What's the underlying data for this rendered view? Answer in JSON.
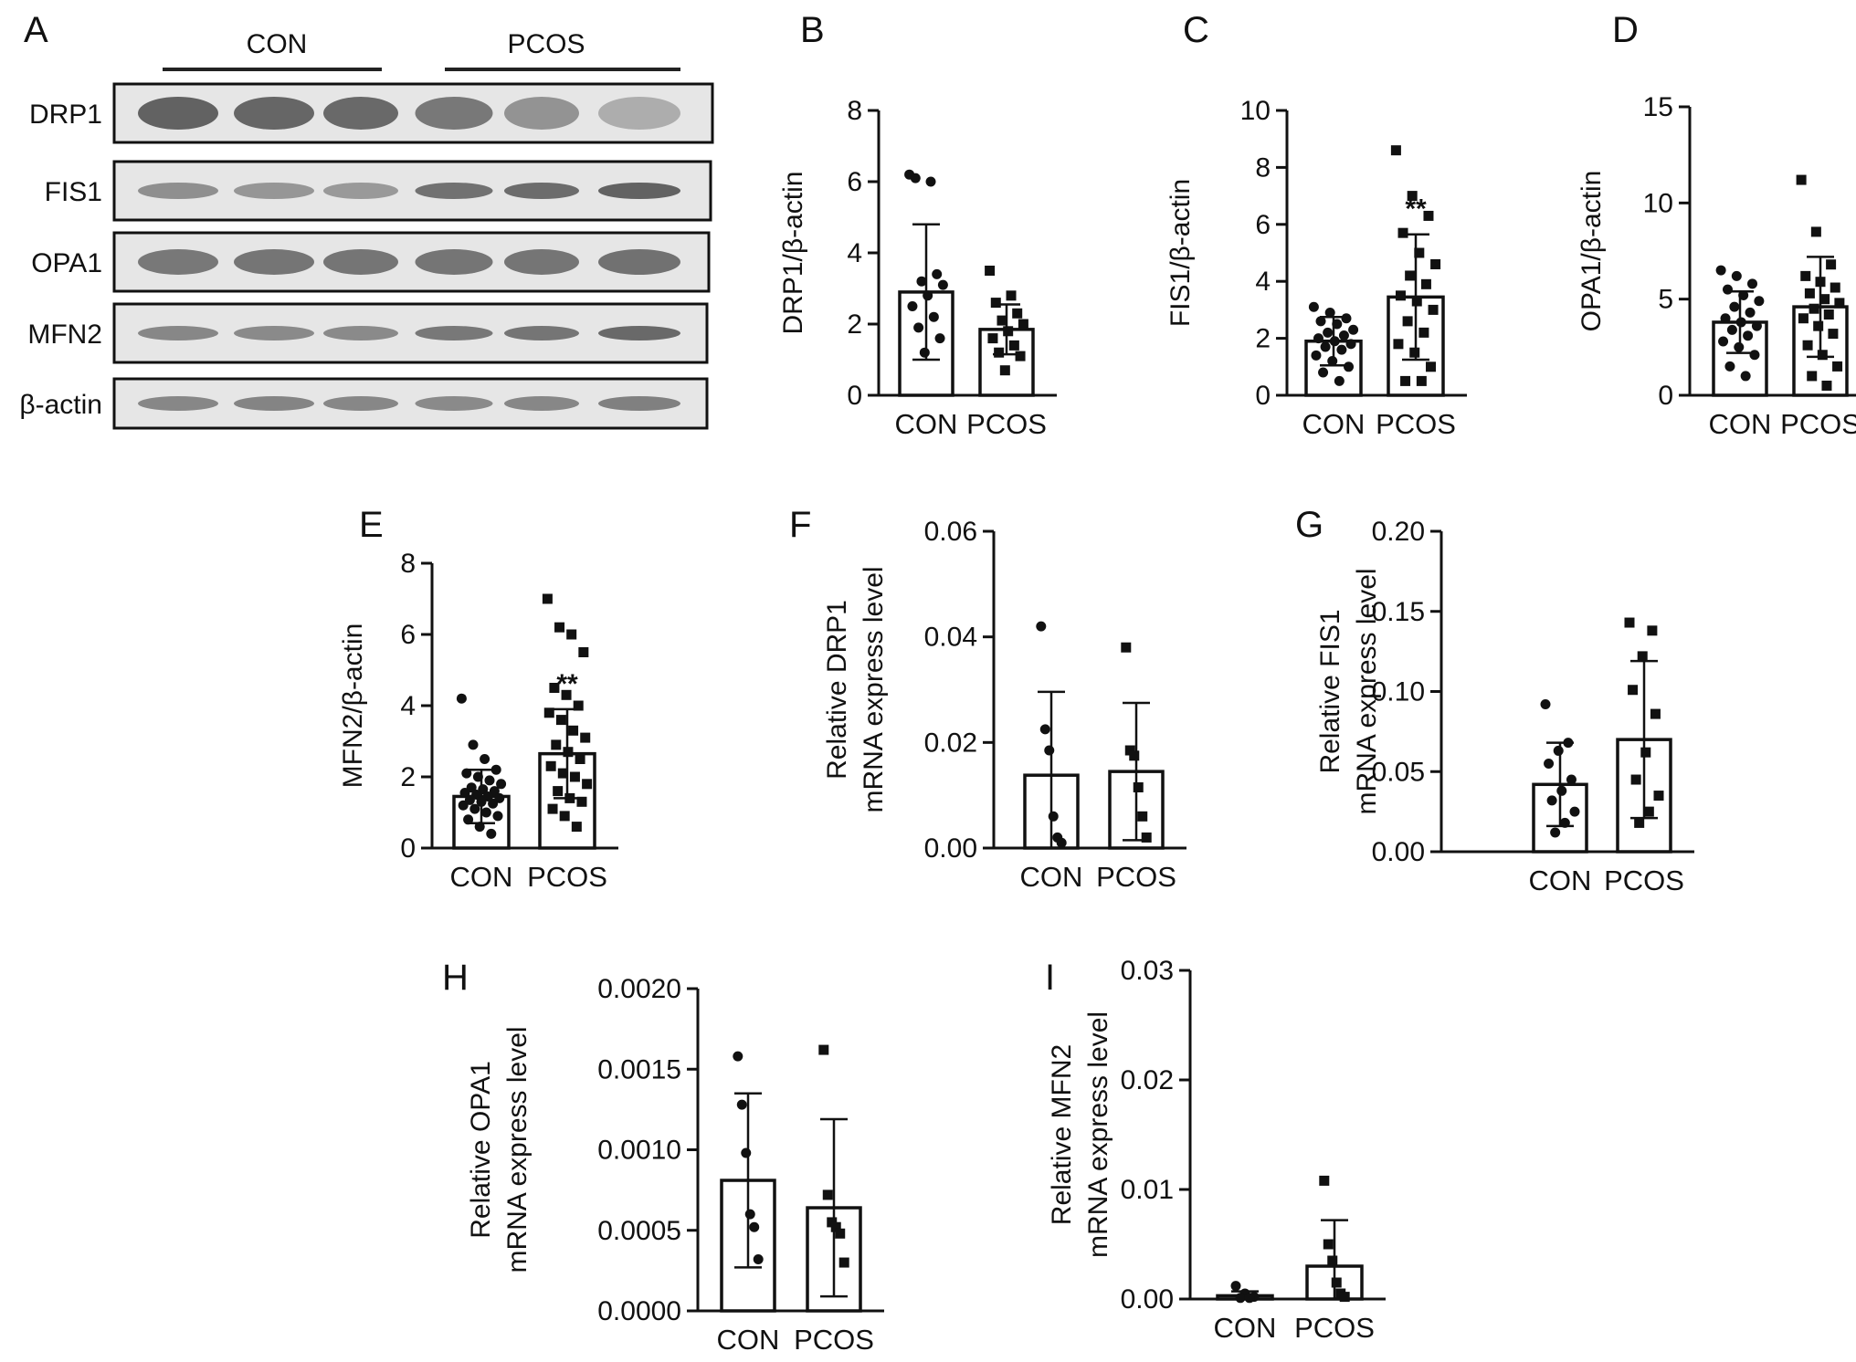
{
  "western_blot": {
    "panel_label": "A",
    "groups": [
      {
        "label": "CON",
        "lanes": 3
      },
      {
        "label": "PCOS",
        "lanes": 3
      }
    ],
    "rows": [
      {
        "label": "DRP1",
        "band_intensity": [
          0.85,
          0.82,
          0.8,
          0.7,
          0.52,
          0.35
        ]
      },
      {
        "label": "FIS1",
        "band_intensity": [
          0.55,
          0.5,
          0.48,
          0.75,
          0.78,
          0.85
        ]
      },
      {
        "label": "OPA1",
        "band_intensity": [
          0.7,
          0.72,
          0.72,
          0.72,
          0.72,
          0.75
        ]
      },
      {
        "label": "MFN2",
        "band_intensity": [
          0.6,
          0.58,
          0.58,
          0.7,
          0.72,
          0.8
        ]
      },
      {
        "label": "β-actin",
        "band_intensity": [
          0.6,
          0.62,
          0.6,
          0.58,
          0.6,
          0.65
        ]
      }
    ]
  },
  "chart_data": [
    {
      "panel": "B",
      "type": "bar",
      "ylabel": [
        "DRP1/β-actin"
      ],
      "ylim": [
        0,
        8
      ],
      "yticks": [
        0,
        2,
        4,
        6,
        8
      ],
      "tick_labels": [
        "0",
        "2",
        "4",
        "6",
        "8"
      ],
      "categories": [
        "CON",
        "PCOS"
      ],
      "values": [
        2.9,
        1.85
      ],
      "sd": [
        1.9,
        0.7
      ],
      "significance": [
        "",
        ""
      ],
      "points": [
        [
          6.2,
          6.0,
          6.1,
          3.4,
          3.2,
          3.1,
          2.8,
          2.5,
          2.2,
          1.9,
          1.6,
          1.2
        ],
        [
          3.5,
          2.8,
          2.6,
          2.3,
          2.1,
          2.0,
          1.8,
          1.6,
          1.4,
          1.2,
          1.1,
          0.7
        ]
      ]
    },
    {
      "panel": "C",
      "type": "bar",
      "ylabel": [
        "FIS1/β-actin"
      ],
      "ylim": [
        0,
        10
      ],
      "yticks": [
        0,
        2,
        4,
        6,
        8,
        10
      ],
      "tick_labels": [
        "0",
        "2",
        "4",
        "6",
        "8",
        "10"
      ],
      "categories": [
        "CON",
        "PCOS"
      ],
      "values": [
        1.9,
        3.45
      ],
      "sd": [
        0.85,
        2.2
      ],
      "significance": [
        "",
        "**"
      ],
      "points": [
        [
          3.1,
          2.9,
          2.7,
          2.6,
          2.5,
          2.3,
          2.2,
          2.1,
          2.0,
          1.9,
          1.8,
          1.7,
          1.6,
          1.4,
          1.2,
          1.0,
          0.8,
          0.5
        ],
        [
          8.6,
          7.0,
          6.3,
          5.7,
          5.0,
          4.6,
          4.2,
          3.9,
          3.5,
          3.3,
          3.0,
          2.6,
          2.2,
          1.8,
          1.5,
          1.0,
          0.5,
          0.5
        ]
      ]
    },
    {
      "panel": "D",
      "type": "bar",
      "ylabel": [
        "OPA1/β-actin"
      ],
      "ylim": [
        0,
        15
      ],
      "yticks": [
        0,
        5,
        10,
        15
      ],
      "tick_labels": [
        "0",
        "5",
        "10",
        "15"
      ],
      "categories": [
        "CON",
        "PCOS"
      ],
      "values": [
        3.8,
        4.6
      ],
      "sd": [
        1.6,
        2.6
      ],
      "significance": [
        "",
        ""
      ],
      "points": [
        [
          6.5,
          6.2,
          5.8,
          5.5,
          5.2,
          4.9,
          4.6,
          4.3,
          4.0,
          3.8,
          3.6,
          3.4,
          3.1,
          2.8,
          2.5,
          2.1,
          1.5,
          1.0
        ],
        [
          11.2,
          8.5,
          6.8,
          6.2,
          5.9,
          5.6,
          5.3,
          5.0,
          4.8,
          4.5,
          4.2,
          4.0,
          3.6,
          3.2,
          2.6,
          2.1,
          1.5,
          1.0,
          0.5
        ]
      ]
    },
    {
      "panel": "E",
      "type": "bar",
      "ylabel": [
        "MFN2/β-actin"
      ],
      "ylim": [
        0,
        8
      ],
      "yticks": [
        0,
        2,
        4,
        6,
        8
      ],
      "tick_labels": [
        "0",
        "2",
        "4",
        "6",
        "8"
      ],
      "categories": [
        "CON",
        "PCOS"
      ],
      "values": [
        1.45,
        2.65
      ],
      "sd": [
        0.75,
        1.25
      ],
      "significance": [
        "",
        "**"
      ],
      "points": [
        [
          4.2,
          2.9,
          2.5,
          2.2,
          2.1,
          2.0,
          1.9,
          1.8,
          1.7,
          1.65,
          1.6,
          1.55,
          1.5,
          1.45,
          1.4,
          1.35,
          1.3,
          1.25,
          1.2,
          1.1,
          1.0,
          0.9,
          0.8,
          0.6,
          0.4
        ],
        [
          7.0,
          6.2,
          6.0,
          5.5,
          4.5,
          4.3,
          4.0,
          3.8,
          3.6,
          3.3,
          3.1,
          2.9,
          2.7,
          2.5,
          2.3,
          2.1,
          2.0,
          1.8,
          1.6,
          1.4,
          1.3,
          1.1,
          0.9,
          0.6
        ]
      ]
    },
    {
      "panel": "F",
      "type": "bar",
      "ylabel": [
        "Relative DRP1",
        "mRNA express level"
      ],
      "ylim": [
        0,
        0.06
      ],
      "yticks": [
        0,
        0.02,
        0.04,
        0.06
      ],
      "tick_labels": [
        "0.00",
        "0.02",
        "0.04",
        "0.06"
      ],
      "categories": [
        "CON",
        "PCOS"
      ],
      "values": [
        0.0138,
        0.0145
      ],
      "sd": [
        0.0158,
        0.013
      ],
      "significance": [
        "",
        ""
      ],
      "points": [
        [
          0.042,
          0.0225,
          0.0185,
          0.006,
          0.002,
          0.001
        ],
        [
          0.038,
          0.0185,
          0.0175,
          0.0115,
          0.006,
          0.002
        ]
      ]
    },
    {
      "panel": "G",
      "type": "bar",
      "ylabel": [
        "Relative FIS1",
        "mRNA express level"
      ],
      "ylim": [
        0,
        0.2
      ],
      "yticks": [
        0,
        0.05,
        0.1,
        0.15,
        0.2
      ],
      "tick_labels": [
        "0.00",
        "0.05",
        "0.10",
        "0.15",
        "0.20"
      ],
      "categories": [
        "CON",
        "PCOS"
      ],
      "values": [
        0.042,
        0.07
      ],
      "sd": [
        0.026,
        0.049
      ],
      "significance": [
        "",
        ""
      ],
      "points": [
        [
          0.092,
          0.068,
          0.063,
          0.055,
          0.045,
          0.038,
          0.032,
          0.025,
          0.018,
          0.012
        ],
        [
          0.143,
          0.138,
          0.122,
          0.101,
          0.086,
          0.062,
          0.045,
          0.035,
          0.025,
          0.018
        ]
      ]
    },
    {
      "panel": "H",
      "type": "bar",
      "ylabel": [
        "Relative OPA1",
        "mRNA express level"
      ],
      "ylim": [
        0,
        0.002
      ],
      "yticks": [
        0,
        0.0005,
        0.001,
        0.0015,
        0.002
      ],
      "tick_labels": [
        "0.0000",
        "0.0005",
        "0.0010",
        "0.0015",
        "0.0020"
      ],
      "categories": [
        "CON",
        "PCOS"
      ],
      "values": [
        0.00081,
        0.00064
      ],
      "sd": [
        0.00054,
        0.00055
      ],
      "significance": [
        "",
        ""
      ],
      "points": [
        [
          0.00158,
          0.00128,
          0.00098,
          0.0006,
          0.00052,
          0.00032
        ],
        [
          0.00162,
          0.00072,
          0.00055,
          0.00052,
          0.00048,
          0.0003
        ]
      ]
    },
    {
      "panel": "I",
      "type": "bar",
      "ylabel": [
        "Relative MFN2",
        "mRNA express level"
      ],
      "ylim": [
        0,
        0.03
      ],
      "yticks": [
        0,
        0.01,
        0.02,
        0.03
      ],
      "tick_labels": [
        "0.00",
        "0.01",
        "0.02",
        "0.03"
      ],
      "categories": [
        "CON",
        "PCOS"
      ],
      "values": [
        0.0003,
        0.003
      ],
      "sd": [
        0.0004,
        0.0042
      ],
      "significance": [
        "",
        ""
      ],
      "points": [
        [
          0.0012,
          0.0005,
          0.0002,
          0.0001,
          0.0001
        ],
        [
          0.0108,
          0.005,
          0.0035,
          0.0015,
          0.0005,
          0.0002
        ]
      ]
    }
  ]
}
